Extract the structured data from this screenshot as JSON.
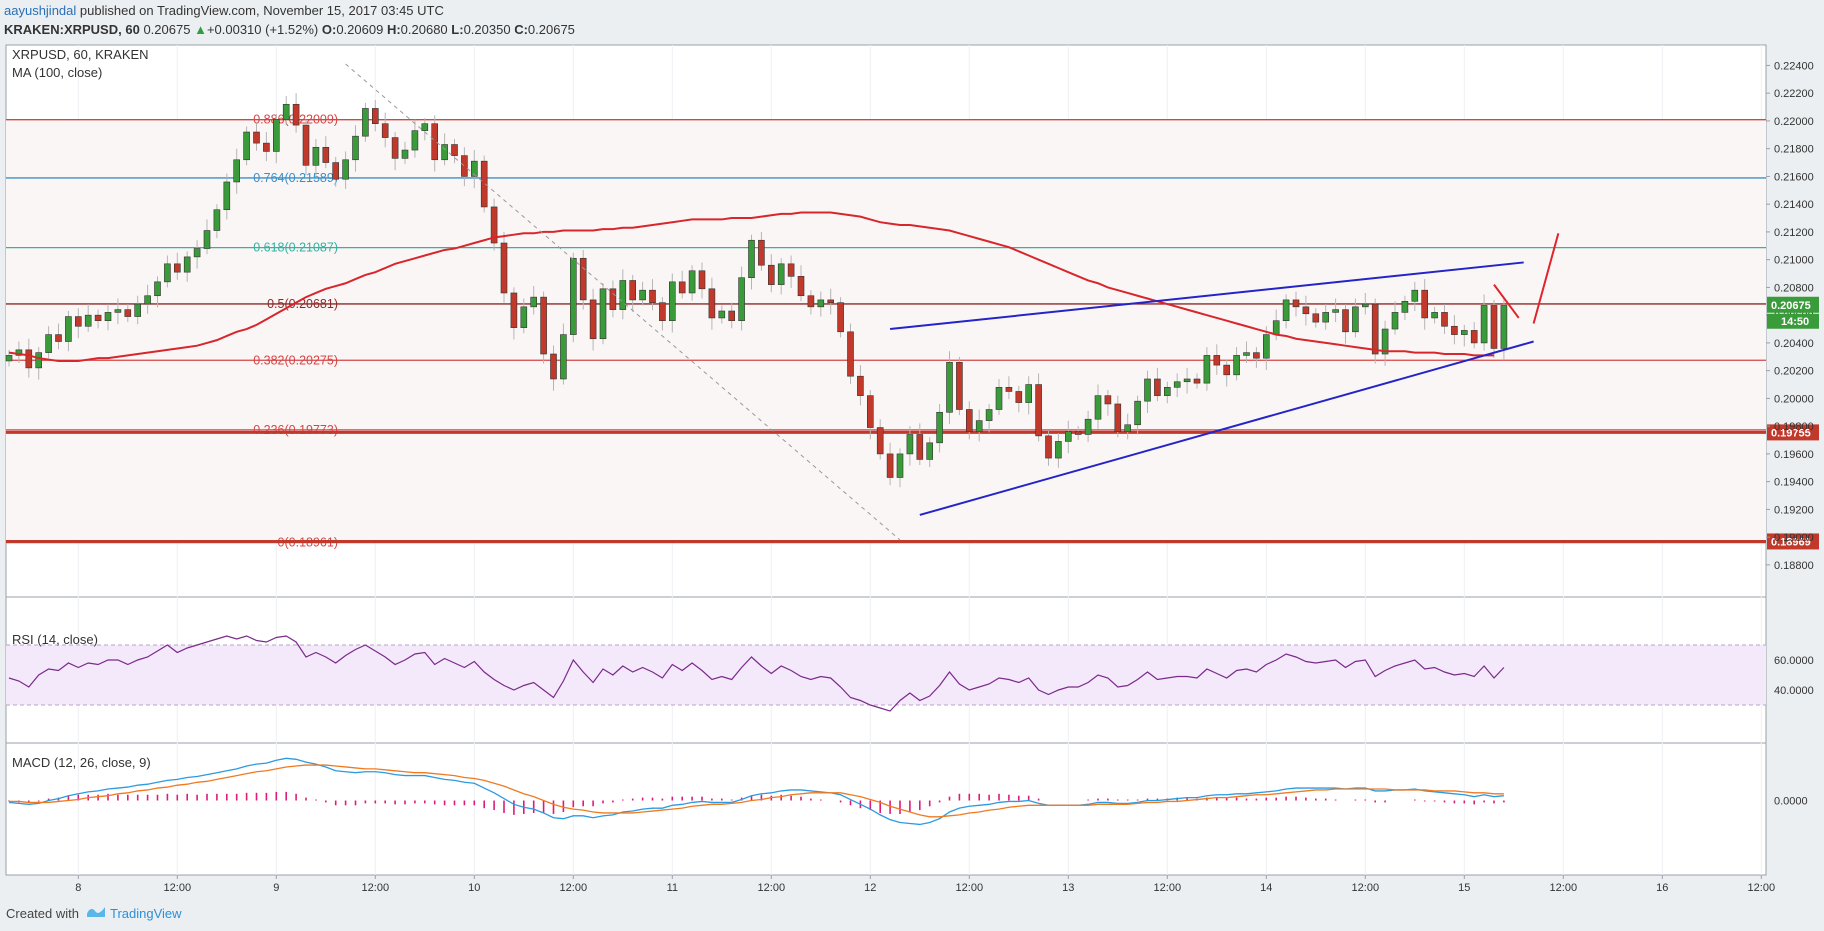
{
  "header": {
    "author": "aayushjindal",
    "published": " published on TradingView.com, November 15, 2017 03:45 UTC",
    "symbol": "KRAKEN:XRPUSD, 60",
    "last": "0.20675",
    "change_arrow": "▲",
    "change": "+0.00310 (+1.52%)",
    "o_label": "O:",
    "o": "0.20609",
    "h_label": "H:",
    "h": "0.20680",
    "l_label": "L:",
    "l": "0.20350",
    "c_label": "C:",
    "c": "0.20675"
  },
  "footer": {
    "created": "Created with",
    "brand": "TradingView",
    "logo_icon": "tradingview-logo-icon"
  },
  "colors": {
    "up": "#3a9b3a",
    "down": "#c0392b",
    "ma": "#d7262c",
    "trend": "#2424c8",
    "fib_red": "#d64545",
    "fib_blue": "#3b8fc8",
    "fib_teal": "#35b2a0",
    "rsi": "#7a2a8a",
    "macd": "#2b9be0",
    "signal": "#f07a20",
    "hist": "#e0197a"
  },
  "chart_data": {
    "type": "candlestick",
    "symbol": "XRPUSD, 60, KRAKEN",
    "indicator_label": "MA (100, close)",
    "ylim": [
      0.1872,
      0.2254
    ],
    "y_ticks": [
      "0.22400",
      "0.22200",
      "0.22000",
      "0.21800",
      "0.21600",
      "0.21400",
      "0.21200",
      "0.21000",
      "0.20800",
      "0.20600",
      "0.20400",
      "0.20200",
      "0.20000",
      "0.19800",
      "0.19600",
      "0.19400",
      "0.19200",
      "0.19000",
      "0.18800"
    ],
    "x_ticks": [
      {
        "label": "8",
        "i": 7
      },
      {
        "label": "12:00",
        "i": 17
      },
      {
        "label": "9",
        "i": 27
      },
      {
        "label": "12:00",
        "i": 37
      },
      {
        "label": "10",
        "i": 47
      },
      {
        "label": "12:00",
        "i": 57
      },
      {
        "label": "11",
        "i": 67
      },
      {
        "label": "12:00",
        "i": 77
      },
      {
        "label": "12",
        "i": 87
      },
      {
        "label": "12:00",
        "i": 97
      },
      {
        "label": "13",
        "i": 107
      },
      {
        "label": "12:00",
        "i": 117
      },
      {
        "label": "14",
        "i": 127
      },
      {
        "label": "12:00",
        "i": 137
      },
      {
        "label": "15",
        "i": 147
      },
      {
        "label": "12:00",
        "i": 157
      },
      {
        "label": "16",
        "i": 167
      },
      {
        "label": "12:00",
        "i": 177
      }
    ],
    "closes": [
      0.2031,
      0.2035,
      0.2022,
      0.2033,
      0.2046,
      0.2041,
      0.2059,
      0.2052,
      0.206,
      0.2056,
      0.2062,
      0.2064,
      0.2059,
      0.2068,
      0.2074,
      0.2084,
      0.2097,
      0.2091,
      0.2102,
      0.2108,
      0.2121,
      0.2136,
      0.2156,
      0.2172,
      0.2192,
      0.2184,
      0.2178,
      0.2201,
      0.2212,
      0.2197,
      0.2168,
      0.2181,
      0.217,
      0.2158,
      0.2172,
      0.2189,
      0.2209,
      0.2198,
      0.2188,
      0.2173,
      0.2179,
      0.2193,
      0.2198,
      0.2172,
      0.2183,
      0.2175,
      0.216,
      0.2171,
      0.2138,
      0.2112,
      0.2076,
      0.2051,
      0.2066,
      0.2073,
      0.2032,
      0.2014,
      0.2046,
      0.2101,
      0.2071,
      0.2043,
      0.2079,
      0.2064,
      0.2085,
      0.2071,
      0.2078,
      0.2069,
      0.2056,
      0.2084,
      0.2076,
      0.2092,
      0.2079,
      0.2058,
      0.2063,
      0.2056,
      0.2087,
      0.2114,
      0.2096,
      0.2082,
      0.2097,
      0.2088,
      0.2074,
      0.2066,
      0.2071,
      0.2069,
      0.2048,
      0.2016,
      0.2002,
      0.1979,
      0.196,
      0.1943,
      0.196,
      0.1974,
      0.1956,
      0.1968,
      0.199,
      0.2026,
      0.1992,
      0.1976,
      0.1984,
      0.1992,
      0.2008,
      0.2005,
      0.1997,
      0.201,
      0.1973,
      0.1957,
      0.1969,
      0.1976,
      0.1974,
      0.1985,
      0.2002,
      0.1996,
      0.1976,
      0.1981,
      0.1998,
      0.2014,
      0.2002,
      0.2008,
      0.2012,
      0.2014,
      0.2011,
      0.2031,
      0.2024,
      0.2017,
      0.2031,
      0.2033,
      0.2029,
      0.2046,
      0.2056,
      0.2071,
      0.2066,
      0.2061,
      0.2055,
      0.2062,
      0.2064,
      0.2048,
      0.2066,
      0.2068,
      0.2032,
      0.205,
      0.2062,
      0.207,
      0.2078,
      0.2058,
      0.2062,
      0.2052,
      0.2046,
      0.2049,
      0.204,
      0.2067,
      0.2036,
      0.2067
    ],
    "ma_100": [
      0.2033,
      0.2032,
      0.2031,
      0.2029,
      0.2028,
      0.2027,
      0.2027,
      0.2027,
      0.2028,
      0.2029,
      0.2029,
      0.203,
      0.2031,
      0.2032,
      0.2033,
      0.2034,
      0.2035,
      0.2036,
      0.2037,
      0.2038,
      0.204,
      0.2042,
      0.2045,
      0.2048,
      0.205,
      0.2053,
      0.2057,
      0.2061,
      0.2065,
      0.2069,
      0.2073,
      0.2076,
      0.2079,
      0.2081,
      0.2083,
      0.2086,
      0.2089,
      0.2091,
      0.2094,
      0.2097,
      0.2099,
      0.2101,
      0.2103,
      0.2105,
      0.2107,
      0.2108,
      0.211,
      0.2112,
      0.2114,
      0.2116,
      0.2117,
      0.2118,
      0.2119,
      0.2119,
      0.212,
      0.212,
      0.2121,
      0.2121,
      0.2121,
      0.2121,
      0.2122,
      0.2122,
      0.2123,
      0.2123,
      0.2124,
      0.2125,
      0.2126,
      0.2127,
      0.2128,
      0.2129,
      0.2129,
      0.2129,
      0.2129,
      0.213,
      0.213,
      0.213,
      0.2131,
      0.2132,
      0.2133,
      0.2133,
      0.2134,
      0.2134,
      0.2134,
      0.2134,
      0.2133,
      0.2132,
      0.2131,
      0.2129,
      0.2127,
      0.2126,
      0.2125,
      0.2125,
      0.2124,
      0.2123,
      0.2122,
      0.2121,
      0.2119,
      0.2117,
      0.2115,
      0.2113,
      0.2111,
      0.2109,
      0.2106,
      0.2103,
      0.21,
      0.2097,
      0.2094,
      0.2091,
      0.2088,
      0.2085,
      0.2083,
      0.208,
      0.2078,
      0.2076,
      0.2074,
      0.2072,
      0.207,
      0.2068,
      0.2066,
      0.2064,
      0.2062,
      0.206,
      0.2058,
      0.2056,
      0.2054,
      0.2052,
      0.205,
      0.2048,
      0.2046,
      0.2045,
      0.2043,
      0.2042,
      0.2041,
      0.204,
      0.2039,
      0.2038,
      0.2037,
      0.2036,
      0.2035,
      0.2034,
      0.2034,
      0.2034,
      0.2033,
      0.2033,
      0.2033,
      0.2032,
      0.2032,
      0.2032,
      0.2031,
      0.2031,
      0.2031
    ],
    "rsi_ylim": [
      20,
      80
    ],
    "rsi_ticks": [
      "60.0000",
      "40.0000"
    ],
    "rsi_bands": [
      70,
      30
    ],
    "rsi": [
      48,
      46,
      42,
      50,
      54,
      53,
      58,
      55,
      58,
      57,
      60,
      60,
      57,
      60,
      62,
      66,
      70,
      65,
      68,
      70,
      72,
      74,
      76,
      74,
      76,
      73,
      72,
      75,
      76,
      72,
      62,
      65,
      62,
      58,
      63,
      67,
      70,
      66,
      62,
      57,
      60,
      64,
      65,
      57,
      61,
      58,
      55,
      59,
      52,
      47,
      43,
      40,
      43,
      45,
      40,
      35,
      46,
      60,
      52,
      45,
      54,
      50,
      56,
      52,
      55,
      52,
      48,
      57,
      53,
      58,
      53,
      47,
      49,
      47,
      55,
      62,
      56,
      51,
      56,
      53,
      49,
      47,
      49,
      48,
      42,
      35,
      33,
      30,
      28,
      26,
      33,
      38,
      33,
      36,
      43,
      52,
      44,
      40,
      42,
      44,
      48,
      47,
      45,
      48,
      40,
      37,
      40,
      42,
      42,
      45,
      50,
      48,
      42,
      43,
      47,
      52,
      47,
      48,
      49,
      49,
      48,
      54,
      51,
      48,
      53,
      54,
      52,
      57,
      60,
      64,
      62,
      59,
      58,
      59,
      60,
      55,
      59,
      60,
      49,
      53,
      56,
      58,
      60,
      54,
      55,
      52,
      50,
      51,
      49,
      56,
      48,
      55
    ],
    "macd_ylim": [
      -0.0006,
      0.0006
    ],
    "macd_ticks": [
      "0.0000"
    ],
    "macd": [
      -2e-05,
      -3e-05,
      -4e-05,
      -3e-05,
      0.0,
      2e-05,
      5e-05,
      7e-05,
      9e-05,
      0.0001,
      0.00012,
      0.00013,
      0.00014,
      0.00016,
      0.00017,
      0.00019,
      0.00021,
      0.00022,
      0.00024,
      0.00025,
      0.00027,
      0.00029,
      0.00031,
      0.00033,
      0.00036,
      0.00038,
      0.00039,
      0.00042,
      0.00044,
      0.00043,
      0.0004,
      0.00038,
      0.00035,
      0.00031,
      0.0003,
      0.00029,
      0.0003,
      0.0003,
      0.00029,
      0.00027,
      0.00026,
      0.00026,
      0.00026,
      0.00024,
      0.00022,
      0.00021,
      0.00019,
      0.00018,
      0.00013,
      8e-05,
      2e-05,
      -4e-05,
      -7e-05,
      -9e-05,
      -0.00013,
      -0.00018,
      -0.00019,
      -0.00016,
      -0.00016,
      -0.00018,
      -0.00016,
      -0.00015,
      -0.00012,
      -0.00011,
      -9e-05,
      -8e-05,
      -8e-05,
      -5e-05,
      -4e-05,
      -2e-05,
      -1e-05,
      -2e-05,
      -2e-05,
      -2e-05,
      1e-05,
      5e-05,
      7e-05,
      8e-05,
      0.0001,
      0.00011,
      0.00011,
      0.0001,
      9e-05,
      8e-05,
      6e-05,
      1e-05,
      -4e-05,
      -9e-05,
      -0.00015,
      -0.0002,
      -0.00023,
      -0.00024,
      -0.00025,
      -0.00023,
      -0.00019,
      -0.00012,
      -8e-05,
      -6e-05,
      -5e-05,
      -4e-05,
      -2e-05,
      -1e-05,
      -1e-05,
      0.0,
      -3e-05,
      -5e-05,
      -5e-05,
      -5e-05,
      -5e-05,
      -4e-05,
      -2e-05,
      -2e-05,
      -3e-05,
      -3e-05,
      -2e-05,
      0.0,
      0.0,
      1e-05,
      2e-05,
      3e-05,
      3e-05,
      5e-05,
      6e-05,
      6e-05,
      7e-05,
      7e-05,
      8e-05,
      9e-05,
      0.0001,
      0.00012,
      0.00013,
      0.00013,
      0.00013,
      0.00013,
      0.00013,
      0.00012,
      0.00013,
      0.00013,
      0.0001,
      0.0001,
      0.00011,
      0.00011,
      0.00012,
      0.0001,
      9e-05,
      8e-05,
      7e-05,
      6e-05,
      4e-05,
      6e-05,
      4e-05,
      5e-05
    ],
    "signal": [
      -1e-05,
      -1e-05,
      -2e-05,
      -2e-05,
      -2e-05,
      -1e-05,
      0.0,
      1e-05,
      3e-05,
      4e-05,
      5e-05,
      7e-05,
      8e-05,
      0.0001,
      0.00011,
      0.00013,
      0.00014,
      0.00016,
      0.00017,
      0.00019,
      0.0002,
      0.00022,
      0.00024,
      0.00026,
      0.00028,
      0.0003,
      0.00031,
      0.00033,
      0.00035,
      0.00036,
      0.00037,
      0.00037,
      0.00037,
      0.00036,
      0.00035,
      0.00034,
      0.00033,
      0.00033,
      0.00032,
      0.00031,
      0.0003,
      0.00029,
      0.00029,
      0.00028,
      0.00027,
      0.00026,
      0.00024,
      0.00023,
      0.00021,
      0.00018,
      0.00015,
      0.00011,
      7e-05,
      4e-05,
      0.0,
      -4e-05,
      -7e-05,
      -9e-05,
      -0.0001,
      -0.00012,
      -0.00013,
      -0.00013,
      -0.00013,
      -0.00013,
      -0.00012,
      -0.00011,
      -0.0001,
      -9e-05,
      -8e-05,
      -6e-05,
      -5e-05,
      -4e-05,
      -4e-05,
      -3e-05,
      -2e-05,
      0.0,
      1e-05,
      3e-05,
      4e-05,
      6e-05,
      7e-05,
      8e-05,
      8e-05,
      8e-05,
      8e-05,
      6e-05,
      4e-05,
      1e-05,
      -2e-05,
      -6e-05,
      -9e-05,
      -0.00012,
      -0.00015,
      -0.00017,
      -0.00017,
      -0.00016,
      -0.00015,
      -0.00013,
      -0.00012,
      -0.0001,
      -9e-05,
      -7e-05,
      -6e-05,
      -5e-05,
      -5e-05,
      -5e-05,
      -5e-05,
      -5e-05,
      -5e-05,
      -5e-05,
      -4e-05,
      -4e-05,
      -4e-05,
      -4e-05,
      -3e-05,
      -2e-05,
      -2e-05,
      -1e-05,
      -1e-05,
      0.0,
      1e-05,
      2e-05,
      3e-05,
      3e-05,
      4e-05,
      5e-05,
      6e-05,
      6e-05,
      7e-05,
      8e-05,
      9e-05,
      0.0001,
      0.00011,
      0.00011,
      0.00012,
      0.00012,
      0.00012,
      0.00012,
      0.00012,
      0.00012,
      0.00011,
      0.00011,
      0.00011,
      0.00011,
      0.0001,
      0.0001,
      0.0001,
      9e-05,
      8e-05,
      8e-05,
      7e-05,
      7e-05
    ],
    "fib_levels": [
      {
        "label": "0.886(0.22009)",
        "value": 0.22009,
        "color": "#d64545"
      },
      {
        "label": "0.764(0.21589)",
        "value": 0.21589,
        "color": "#3b8fc8"
      },
      {
        "label": "0.618(0.21087)",
        "value": 0.21087,
        "color": "#35b2a0"
      },
      {
        "label": "0.5(0.20681)",
        "value": 0.20681,
        "color": "#8b2a2a"
      },
      {
        "label": "0.382(0.20275)",
        "value": 0.20275,
        "color": "#d64545"
      },
      {
        "label": "0.236(0.19773)",
        "value": 0.19773,
        "color": "#d64545"
      },
      {
        "label": "0(0.18961)",
        "value": 0.18961,
        "color": "#d64545"
      }
    ],
    "horizontal_lines": [
      {
        "value": 0.19755,
        "label": "0.19755"
      },
      {
        "value": 0.18969,
        "label": "0.18969"
      }
    ],
    "price_badges": [
      {
        "value": 0.20675,
        "label": "0.20675",
        "color": "#3a9b3a"
      },
      {
        "label": "14:50",
        "color": "#3a9b3a"
      }
    ],
    "trendlines": [
      {
        "from": [
          89,
          0.205
        ],
        "to": [
          153,
          0.2098
        ],
        "color": "#2424c8"
      },
      {
        "from": [
          92,
          0.1916
        ],
        "to": [
          154,
          0.2041
        ],
        "color": "#2424c8"
      },
      {
        "from": [
          34,
          0.2241
        ],
        "to": [
          90,
          0.1898
        ],
        "color": "#999999",
        "dashed": true
      }
    ],
    "arrow_sketch": [
      [
        150,
        0.2082
      ],
      [
        152.5,
        0.2058
      ],
      [
        154,
        0.2054
      ],
      [
        156.5,
        0.2119
      ]
    ],
    "rsi_label": "RSI (14, close)",
    "macd_label": "MACD (12, 26, close, 9)"
  }
}
